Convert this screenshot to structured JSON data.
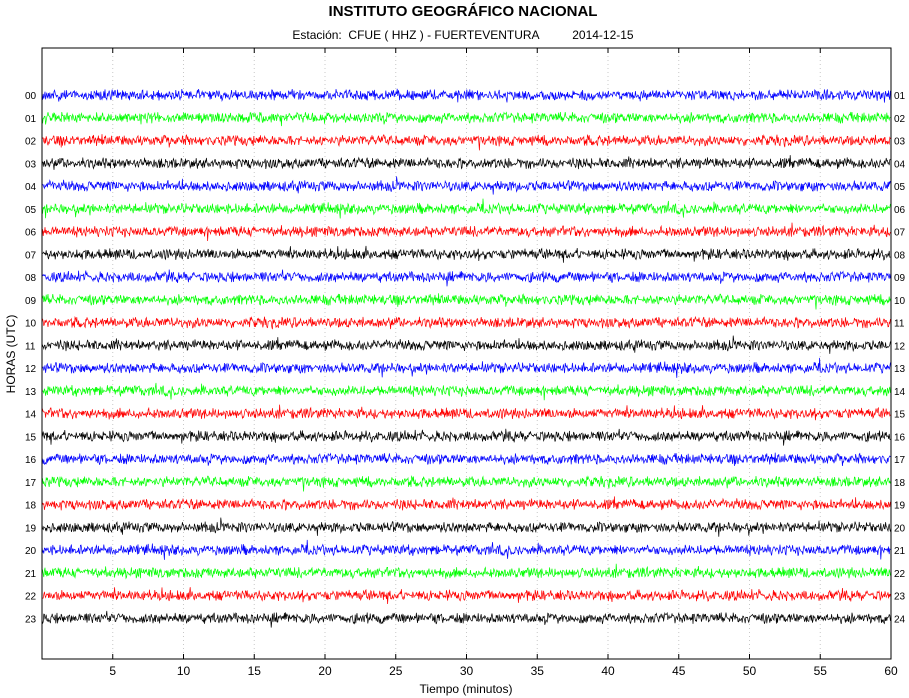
{
  "header": {
    "title": "INSTITUTO GEOGRÁFICO NACIONAL",
    "station_label": "Estación:",
    "station": "CFUE ( HHZ ) - FUERTEVENTURA",
    "date": "2014-12-15"
  },
  "chart_data": {
    "type": "line",
    "title": "INSTITUTO GEOGRÁFICO NACIONAL",
    "xlabel": "Tiempo (minutos)",
    "ylabel": "HORAS (UTC)",
    "xlim": [
      0,
      60
    ],
    "x_ticks": [
      5,
      10,
      15,
      20,
      25,
      30,
      35,
      40,
      45,
      50,
      55,
      60
    ],
    "grid": "vertical dotted at x ticks",
    "left_hour_labels": [
      "00",
      "01",
      "02",
      "03",
      "04",
      "05",
      "06",
      "07",
      "08",
      "09",
      "10",
      "11",
      "12",
      "13",
      "14",
      "15",
      "16",
      "17",
      "18",
      "19",
      "20",
      "21",
      "22",
      "23"
    ],
    "right_hour_labels": [
      "01",
      "02",
      "03",
      "04",
      "05",
      "06",
      "07",
      "08",
      "09",
      "10",
      "11",
      "12",
      "13",
      "14",
      "15",
      "16",
      "17",
      "18",
      "19",
      "20",
      "21",
      "22",
      "23",
      "24"
    ],
    "trace_color_cycle": [
      "#0000ff",
      "#00ff00",
      "#ff0000",
      "#000000"
    ],
    "trace_style": "continuous seismic noise, no distinct events"
  }
}
